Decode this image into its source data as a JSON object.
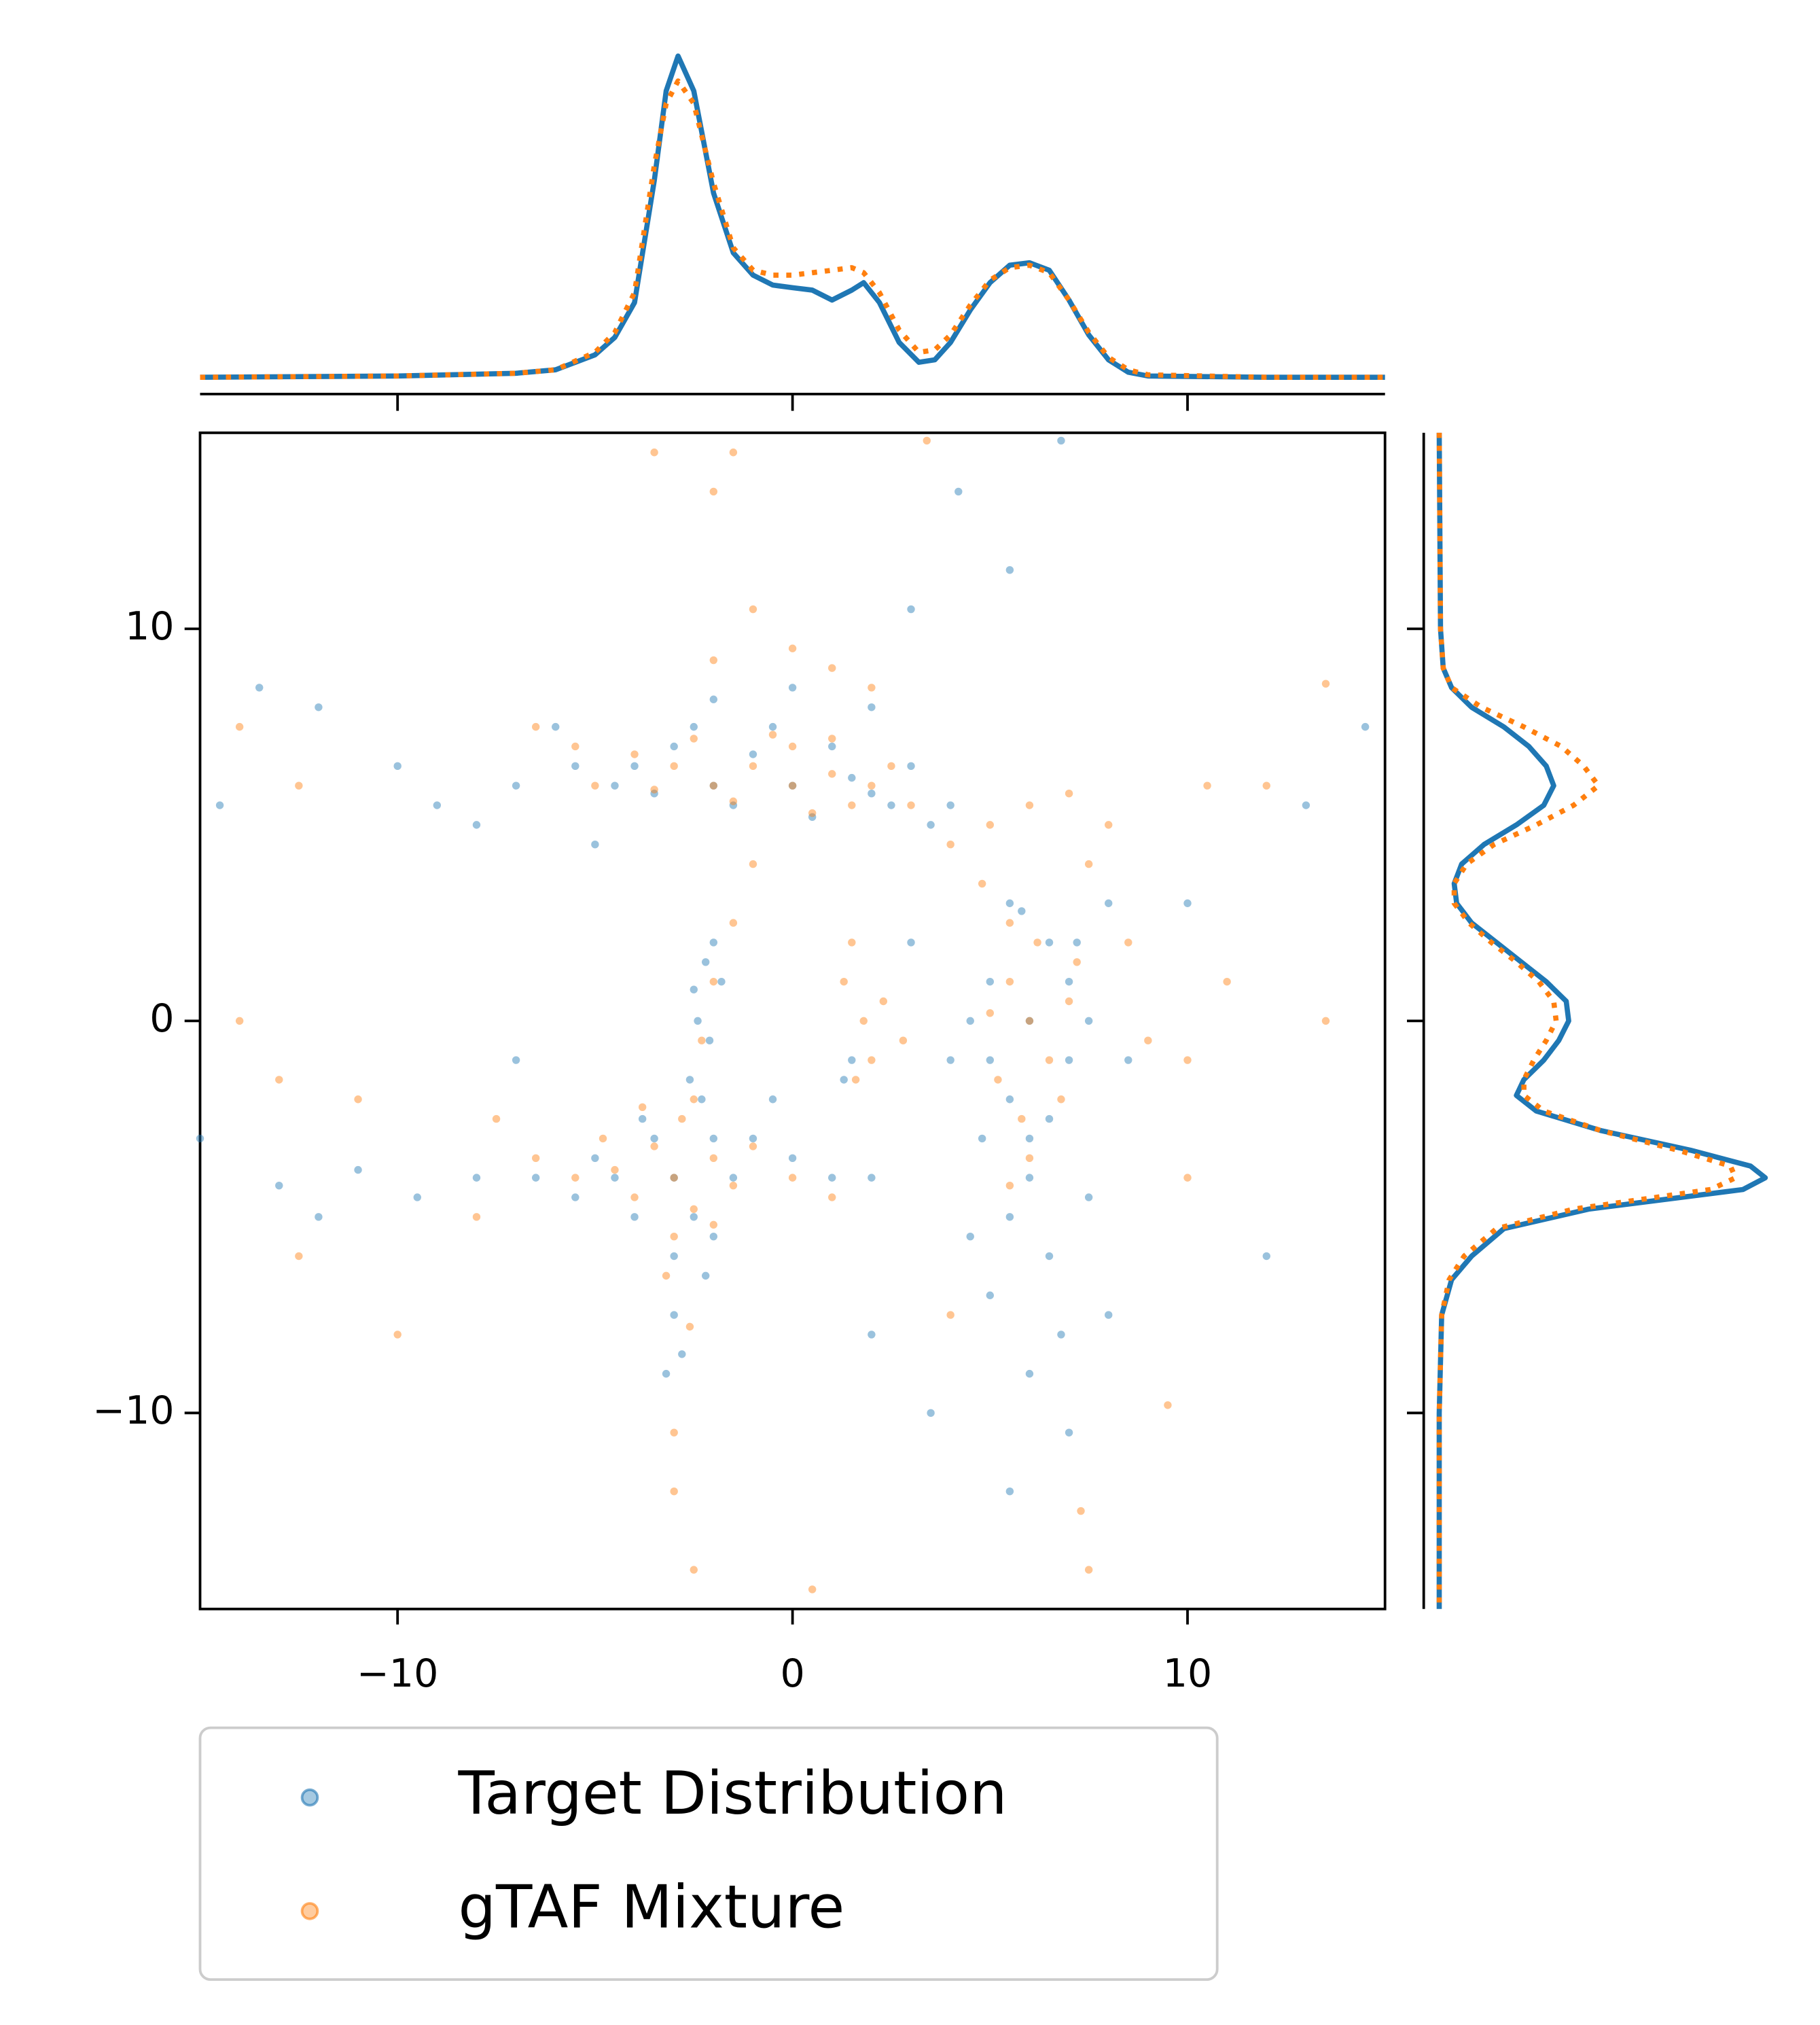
{
  "chart_data": [
    {
      "type": "scatter",
      "xlim": [
        -15,
        15
      ],
      "ylim": [
        -15,
        15
      ],
      "xticks": [
        {
          "value": -10,
          "label": "−10"
        },
        0,
        10
      ],
      "yticks": [
        {
          "value": -10,
          "label": "−10"
        },
        0,
        10
      ],
      "legend": "below",
      "series": [
        {
          "name": "Target Distribution",
          "color": "#1f77b4",
          "x": [
            -4,
            -3,
            -2,
            -1,
            0,
            1,
            2,
            3,
            -3.5,
            -2.5,
            0.5,
            1.5,
            2.5,
            -1.5,
            -0.5,
            3.5,
            -4.5,
            4,
            0,
            -2,
            2,
            -5.5,
            -6,
            -7,
            -9,
            -5,
            5,
            6,
            7,
            5.5,
            6.5,
            5,
            7,
            6,
            5.5,
            7.5,
            4.5,
            6.5,
            5.8,
            7.2,
            4.8,
            6,
            5.5,
            6.5,
            5,
            6.8,
            6,
            7,
            5.5,
            8,
            8.5,
            4.5,
            7.5,
            -3,
            -2,
            -4,
            -3.5,
            -2.5,
            -4.5,
            -1.5,
            -3,
            -2,
            -5,
            -5.5,
            -6.5,
            -8,
            -9.5,
            -11,
            -13,
            -3,
            -2.8,
            -3.2,
            -1,
            0,
            1,
            2,
            -0.5,
            -3.8,
            -2.2,
            -2,
            -2.2,
            -1.8,
            -2.4,
            -2.1,
            -2.6,
            -2.3,
            -2.5,
            1.5,
            1.3,
            -14.5,
            -12,
            -13.5,
            -10,
            13,
            14.5,
            10,
            12,
            -15,
            3,
            4.2,
            6.8,
            5.5,
            3,
            4,
            -7,
            -12,
            2,
            3.5,
            8,
            -8
          ],
          "y": [
            6.5,
            7,
            6,
            6.8,
            6,
            7,
            5.8,
            6.5,
            5.8,
            7.5,
            5.2,
            6.2,
            5.5,
            5.5,
            7.5,
            5,
            6,
            5.5,
            8.5,
            8.2,
            8,
            6.5,
            7.5,
            6,
            5.5,
            4.5,
            1,
            0,
            -1,
            -2,
            2,
            -1,
            1,
            -3,
            3,
            0,
            0,
            -2.5,
            2.8,
            2,
            -3,
            -4,
            -5,
            -6,
            -7,
            -8,
            -9,
            -10.5,
            -12,
            3,
            -1,
            -5.5,
            -4.5,
            -4,
            -3,
            -5,
            -3,
            -5,
            -4,
            -4,
            -6,
            -5.5,
            -3.5,
            -4.5,
            -4,
            -4,
            -4.5,
            -3.8,
            -4.2,
            -7.5,
            -8.5,
            -9,
            -3,
            -3.5,
            -4,
            -4,
            -2,
            -2.5,
            -6.5,
            2,
            1.5,
            1,
            0,
            -0.5,
            -1.5,
            -2,
            0.8,
            -1,
            -1.5,
            5.5,
            8,
            8.5,
            6.5,
            5.5,
            7.5,
            3,
            -6,
            -3,
            10.5,
            13.5,
            14.8,
            11.5,
            2,
            -1,
            -1,
            -5,
            -8,
            -10,
            -7.5,
            5
          ]
        },
        {
          "name": "gTAF Mixture",
          "color": "#ff7f0e",
          "x": [
            -3,
            -2,
            -1,
            0,
            1,
            2,
            3,
            -4,
            -2.5,
            -0.5,
            0.5,
            1.5,
            2.5,
            -1.5,
            0,
            -3.5,
            1,
            -5,
            4,
            5,
            6,
            7,
            7.5,
            8,
            -5.5,
            -6.5,
            0,
            -1,
            1,
            -2,
            2,
            5.5,
            6,
            6.5,
            5.2,
            6.2,
            5.8,
            7,
            6.8,
            5,
            7.2,
            5.5,
            6,
            4.8,
            8.5,
            9,
            10,
            11,
            5.5,
            -3,
            -2,
            -4,
            -3.5,
            -2.5,
            -4.5,
            -1.5,
            -3,
            -2,
            -4.8,
            -5.5,
            -3.2,
            -2.6,
            -1,
            0,
            1,
            -6.5,
            -7.5,
            -8,
            -3.8,
            -2.8,
            -3,
            -3,
            -2,
            -2.3,
            -2.5,
            -1.5,
            -1,
            1.5,
            1.8,
            2,
            1.3,
            2.3,
            2.8,
            1.6,
            -14,
            -12.5,
            -14,
            -13,
            -12.5,
            -11,
            -3.5,
            -1.5,
            -2,
            3.4,
            7.3,
            7.5,
            10.5,
            12,
            13.5,
            9.5,
            13.5,
            -2.5,
            4,
            10,
            -10,
            0.5
          ],
          "y": [
            6.5,
            6,
            6.5,
            6,
            6.3,
            6,
            5.5,
            6.8,
            7.2,
            7.3,
            5.3,
            5.5,
            6.5,
            5.6,
            7,
            5.9,
            7.2,
            6,
            4.5,
            5,
            5.5,
            5.8,
            4,
            5,
            7,
            7.5,
            9.5,
            10.5,
            9,
            9.2,
            8.5,
            1,
            0,
            -1,
            -1.5,
            2,
            -2.5,
            0.5,
            -2,
            0.2,
            1.5,
            2.5,
            -3.5,
            3.5,
            2,
            -0.5,
            -1,
            1,
            -4.2,
            -4,
            -3.5,
            -4.5,
            -3.2,
            -4.8,
            -3.8,
            -4.2,
            -5.5,
            -5.2,
            -3,
            -4,
            -6.5,
            -7.8,
            -3.2,
            -4,
            -4.5,
            -3.5,
            -2.5,
            -5,
            -2.2,
            -2.5,
            -10.5,
            -12,
            1,
            -0.5,
            -2,
            2.5,
            4,
            2,
            0,
            -1,
            1,
            0.5,
            -0.5,
            -1.5,
            7.5,
            6,
            0,
            -1.5,
            -6,
            -2,
            14.5,
            14.5,
            13.5,
            14.8,
            -12.5,
            -14,
            6,
            6,
            8.6,
            -9.8,
            0,
            -14,
            -7.5,
            -4,
            -8,
            -14.5
          ]
        }
      ]
    },
    {
      "type": "line",
      "orientation": "horizontal",
      "xlim": [
        -15,
        15
      ],
      "ylim": [
        0,
        0.14
      ],
      "x": [
        -15,
        -10,
        -7,
        -6,
        -5,
        -4.5,
        -4,
        -3.5,
        -3.2,
        -2.9,
        -2.5,
        -2,
        -1.5,
        -1,
        -0.5,
        0,
        0.5,
        1,
        1.5,
        1.8,
        2.2,
        2.7,
        3.2,
        3.6,
        4,
        4.5,
        5,
        5.5,
        6,
        6.5,
        7,
        7.5,
        8,
        8.5,
        9,
        12,
        15
      ],
      "series": [
        {
          "color": "#1f77b4",
          "linestyle": "solid",
          "values": [
            0,
            0.0005,
            0.0016,
            0.003,
            0.009,
            0.016,
            0.03,
            0.079,
            0.115,
            0.129,
            0.115,
            0.074,
            0.05,
            0.041,
            0.037,
            0.036,
            0.035,
            0.031,
            0.035,
            0.038,
            0.03,
            0.014,
            0.006,
            0.007,
            0.014,
            0.027,
            0.038,
            0.045,
            0.046,
            0.043,
            0.031,
            0.017,
            0.007,
            0.002,
            0.0005,
            0,
            0
          ]
        },
        {
          "color": "#ff7f0e",
          "linestyle": "dotted",
          "values": [
            0,
            0.0005,
            0.0016,
            0.003,
            0.01,
            0.018,
            0.034,
            0.085,
            0.11,
            0.119,
            0.11,
            0.078,
            0.052,
            0.043,
            0.041,
            0.041,
            0.042,
            0.043,
            0.044,
            0.042,
            0.034,
            0.019,
            0.01,
            0.011,
            0.017,
            0.029,
            0.039,
            0.044,
            0.045,
            0.042,
            0.031,
            0.018,
            0.008,
            0.003,
            0.001,
            0,
            0
          ]
        }
      ]
    },
    {
      "type": "line",
      "orientation": "vertical",
      "xlim": [
        0,
        0.14
      ],
      "ylim": [
        -15,
        15
      ],
      "y": [
        15,
        10,
        9,
        8.5,
        8,
        7.5,
        7,
        6.5,
        6,
        5.5,
        5,
        4.5,
        4,
        3.5,
        3,
        2.5,
        2,
        1.5,
        1,
        0.5,
        0,
        -0.5,
        -1,
        -1.5,
        -1.9,
        -2.3,
        -2.8,
        -3.3,
        -3.7,
        -4,
        -4.3,
        -4.8,
        -5.3,
        -6,
        -6.6,
        -7.5,
        -10,
        -15
      ],
      "series": [
        {
          "color": "#1f77b4",
          "linestyle": "solid",
          "values": [
            0,
            0.0005,
            0.0016,
            0.005,
            0.013,
            0.026,
            0.036,
            0.043,
            0.046,
            0.042,
            0.031,
            0.018,
            0.009,
            0.006,
            0.007,
            0.013,
            0.023,
            0.033,
            0.043,
            0.051,
            0.052,
            0.048,
            0.042,
            0.034,
            0.031,
            0.039,
            0.065,
            0.101,
            0.125,
            0.131,
            0.122,
            0.06,
            0.026,
            0.013,
            0.005,
            0.001,
            0,
            0
          ]
        },
        {
          "color": "#ff7f0e",
          "linestyle": "dotted",
          "values": [
            0,
            0.0005,
            0.0016,
            0.005,
            0.017,
            0.034,
            0.049,
            0.058,
            0.064,
            0.054,
            0.039,
            0.022,
            0.011,
            0.006,
            0.006,
            0.012,
            0.021,
            0.031,
            0.04,
            0.046,
            0.047,
            0.043,
            0.038,
            0.034,
            0.034,
            0.042,
            0.065,
            0.096,
            0.117,
            0.119,
            0.109,
            0.054,
            0.023,
            0.01,
            0.004,
            0.001,
            0,
            0
          ]
        }
      ]
    }
  ]
}
